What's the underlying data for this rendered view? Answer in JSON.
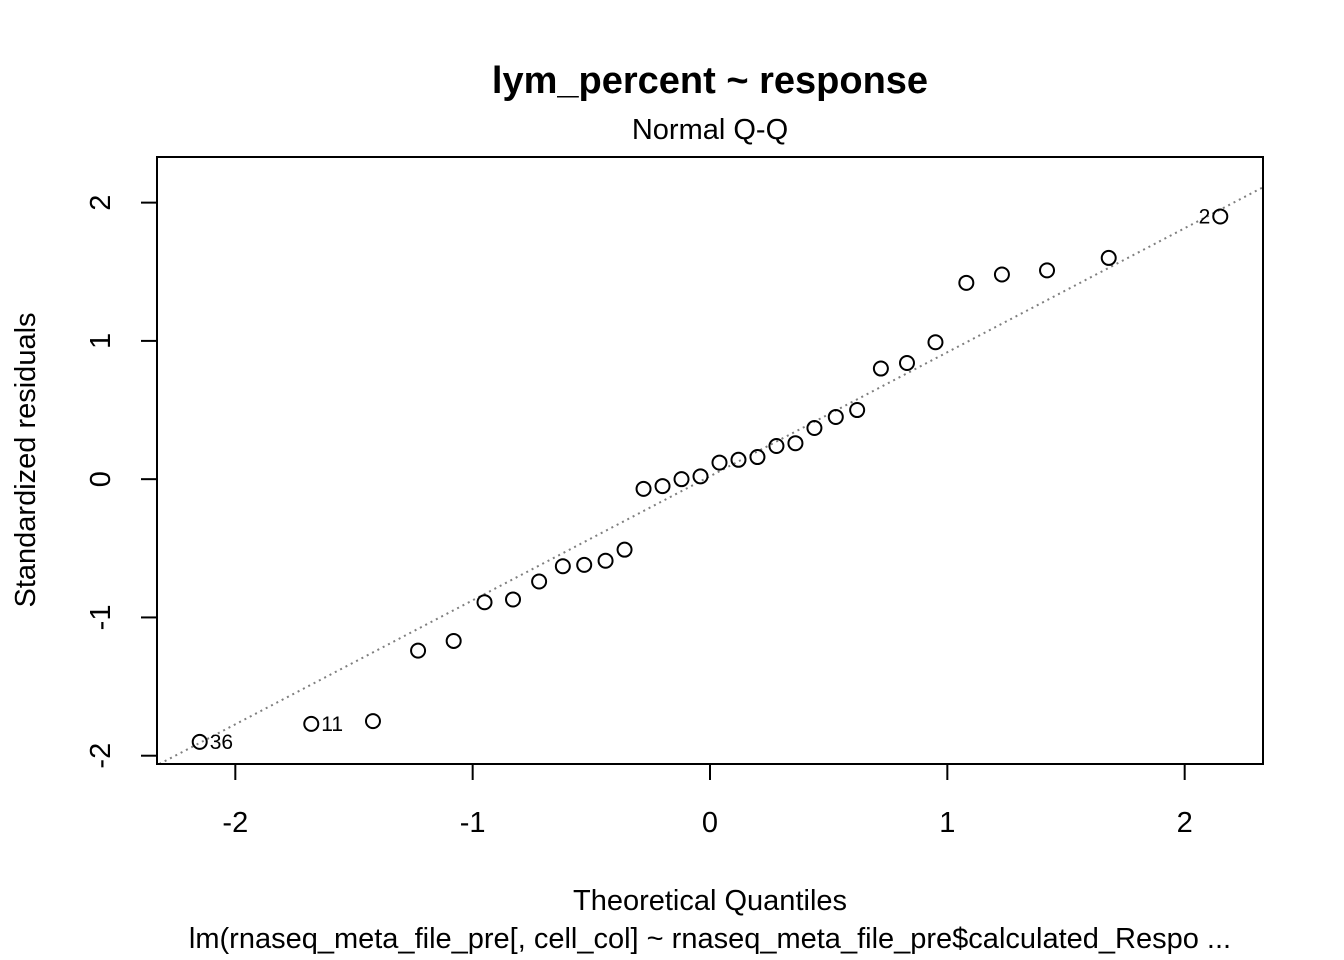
{
  "chart_data": {
    "type": "scatter",
    "title": "lym_percent ~ response",
    "subtitle": "Normal Q-Q",
    "xlabel": "Theoretical Quantiles",
    "ylabel": "Standardized residuals",
    "caption": "lm(rnaseq_meta_file_pre[, cell_col] ~ rnaseq_meta_file_pre$calculated_Respo ...",
    "xlim": [
      -2.33,
      2.33
    ],
    "ylim": [
      -2.06,
      2.33
    ],
    "x_ticks": [
      -2,
      -1,
      0,
      1,
      2
    ],
    "x_tick_labels": [
      "-2",
      "-1",
      "0",
      "1",
      "2"
    ],
    "y_ticks": [
      -2,
      -1,
      0,
      1,
      2
    ],
    "y_tick_labels": [
      "-2",
      "-1",
      "0",
      "1",
      "2"
    ],
    "grid": false,
    "reference_line": {
      "style": "dotted",
      "color": "#7f7f7f",
      "slope": 0.897,
      "intercept": 0.021
    },
    "points": [
      {
        "x": -2.15,
        "y": -1.9,
        "label": "36"
      },
      {
        "x": -1.68,
        "y": -1.77,
        "label": "11"
      },
      {
        "x": -1.42,
        "y": -1.75
      },
      {
        "x": -1.23,
        "y": -1.24
      },
      {
        "x": -1.08,
        "y": -1.17
      },
      {
        "x": -0.95,
        "y": -0.89
      },
      {
        "x": -0.83,
        "y": -0.87
      },
      {
        "x": -0.72,
        "y": -0.74
      },
      {
        "x": -0.62,
        "y": -0.63
      },
      {
        "x": -0.53,
        "y": -0.62
      },
      {
        "x": -0.44,
        "y": -0.59
      },
      {
        "x": -0.36,
        "y": -0.51
      },
      {
        "x": -0.28,
        "y": -0.07
      },
      {
        "x": -0.2,
        "y": -0.05
      },
      {
        "x": -0.12,
        "y": 0.0
      },
      {
        "x": -0.04,
        "y": 0.02
      },
      {
        "x": 0.04,
        "y": 0.12
      },
      {
        "x": 0.12,
        "y": 0.14
      },
      {
        "x": 0.2,
        "y": 0.16
      },
      {
        "x": 0.28,
        "y": 0.24
      },
      {
        "x": 0.36,
        "y": 0.26
      },
      {
        "x": 0.44,
        "y": 0.37
      },
      {
        "x": 0.53,
        "y": 0.45
      },
      {
        "x": 0.62,
        "y": 0.5
      },
      {
        "x": 0.72,
        "y": 0.8
      },
      {
        "x": 0.83,
        "y": 0.84
      },
      {
        "x": 0.95,
        "y": 0.99
      },
      {
        "x": 1.08,
        "y": 1.42
      },
      {
        "x": 1.23,
        "y": 1.48
      },
      {
        "x": 1.42,
        "y": 1.51
      },
      {
        "x": 1.68,
        "y": 1.6
      },
      {
        "x": 2.15,
        "y": 1.9,
        "label": "2"
      }
    ]
  }
}
